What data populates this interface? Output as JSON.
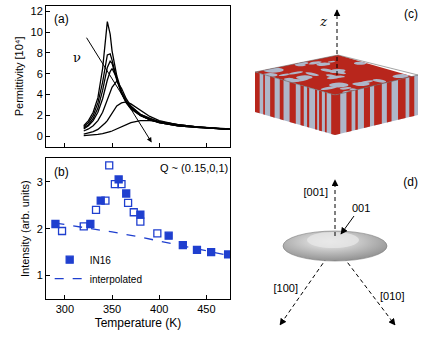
{
  "chart_data": [
    {
      "panel_label": "(a)",
      "type": "line",
      "y_label": "Permittivity [10⁴]",
      "x": [
        320,
        325,
        330,
        335,
        340,
        343,
        345,
        348,
        350,
        355,
        360,
        365,
        370,
        380,
        390,
        400,
        420,
        440,
        460,
        475
      ],
      "series": [
        {
          "color": "#000000",
          "values": [
            1.0,
            1.5,
            2.3,
            3.7,
            6.5,
            9.5,
            11.0,
            9.8,
            8.2,
            5.8,
            4.3,
            3.4,
            2.8,
            2.1,
            1.7,
            1.4,
            1.1,
            0.9,
            0.8,
            0.7
          ]
        },
        {
          "color": "#000000",
          "values": [
            0.9,
            1.3,
            2.0,
            3.2,
            5.2,
            7.0,
            7.8,
            7.9,
            7.3,
            5.5,
            4.2,
            3.3,
            2.7,
            2.0,
            1.6,
            1.3,
            1.0,
            0.85,
            0.75,
            0.65
          ]
        },
        {
          "color": "#000000",
          "values": [
            0.8,
            1.1,
            1.7,
            2.7,
            4.4,
            5.8,
            6.6,
            7.2,
            7.0,
            5.4,
            4.1,
            3.2,
            2.6,
            2.0,
            1.6,
            1.3,
            1.0,
            0.85,
            0.75,
            0.65
          ]
        },
        {
          "color": "#000000",
          "values": [
            0.7,
            1.0,
            1.5,
            2.3,
            3.6,
            4.7,
            5.4,
            6.2,
            6.5,
            5.6,
            4.2,
            3.3,
            2.7,
            2.0,
            1.6,
            1.3,
            1.0,
            0.85,
            0.75,
            0.65
          ]
        },
        {
          "color": "#000000",
          "values": [
            0.5,
            0.7,
            1.0,
            1.5,
            2.3,
            3.0,
            3.5,
            4.3,
            4.7,
            5.3,
            4.6,
            3.6,
            2.9,
            2.1,
            1.7,
            1.35,
            1.05,
            0.9,
            0.75,
            0.65
          ]
        },
        {
          "color": "#000000",
          "values": [
            0.2,
            0.3,
            0.45,
            0.65,
            1.0,
            1.3,
            1.5,
            1.9,
            2.2,
            2.9,
            3.2,
            3.3,
            3.1,
            2.5,
            1.9,
            1.5,
            1.1,
            0.9,
            0.75,
            0.65
          ]
        },
        {
          "color": "#000000",
          "values": [
            0.05,
            0.08,
            0.12,
            0.17,
            0.25,
            0.3,
            0.35,
            0.45,
            0.5,
            0.7,
            0.9,
            1.1,
            1.3,
            1.5,
            1.5,
            1.4,
            1.1,
            0.9,
            0.75,
            0.65
          ]
        }
      ],
      "xlim": [
        280,
        475
      ],
      "xticks": [
        300,
        350,
        400,
        450
      ],
      "ylim": [
        -1,
        12.5
      ],
      "yticks": [
        0,
        2,
        4,
        6,
        8,
        10,
        12
      ],
      "tick_labels": "y",
      "grid": false,
      "annotations": [
        {
          "text": "ν"
        }
      ]
    },
    {
      "panel_label": "(b)",
      "type": "scatter",
      "x_label": "Temperature (K)",
      "y_label": "Intensity (arb. units)",
      "series": [
        {
          "name": "IN16",
          "type": "scatter",
          "marker": "filled square",
          "color": "#1f3fcf",
          "x": [
            290,
            327,
            338,
            357,
            365,
            380,
            410,
            425,
            440,
            455,
            473
          ],
          "values": [
            2.1,
            2.1,
            2.6,
            3.05,
            2.75,
            2.3,
            1.85,
            1.65,
            1.55,
            1.5,
            1.45
          ]
        },
        {
          "type": "scatter",
          "marker": "open square",
          "color": "#1f3fcf",
          "x": [
            297,
            320,
            333,
            343,
            347,
            353,
            360,
            367,
            373,
            380,
            398
          ],
          "values": [
            1.95,
            2.05,
            2.4,
            2.6,
            3.35,
            2.95,
            2.95,
            2.55,
            2.35,
            2.15,
            1.9
          ]
        },
        {
          "name": "interpolated",
          "type": "line",
          "line_style": "dashed",
          "color": "#1f3fcf",
          "x": [
            290,
            320,
            350,
            380,
            410,
            440,
            475
          ],
          "values": [
            2.12,
            2.03,
            1.93,
            1.82,
            1.7,
            1.57,
            1.42
          ]
        }
      ],
      "xlim": [
        280,
        475
      ],
      "xticks": [
        300,
        350,
        400,
        450
      ],
      "ylim": [
        0.5,
        3.5
      ],
      "yticks": [
        1,
        2,
        3
      ],
      "grid": false,
      "legend": "lower left",
      "annotations": [
        {
          "text": "Q ~ (0.15,0,1)"
        }
      ]
    }
  ],
  "panel_c": {
    "panel_label": "(c)",
    "axis_label": "z"
  },
  "panel_d": {
    "panel_label": "(d)",
    "axis_up": "[001]",
    "axis_left": "[100]",
    "axis_right": "[010]",
    "marker_label": "001"
  }
}
